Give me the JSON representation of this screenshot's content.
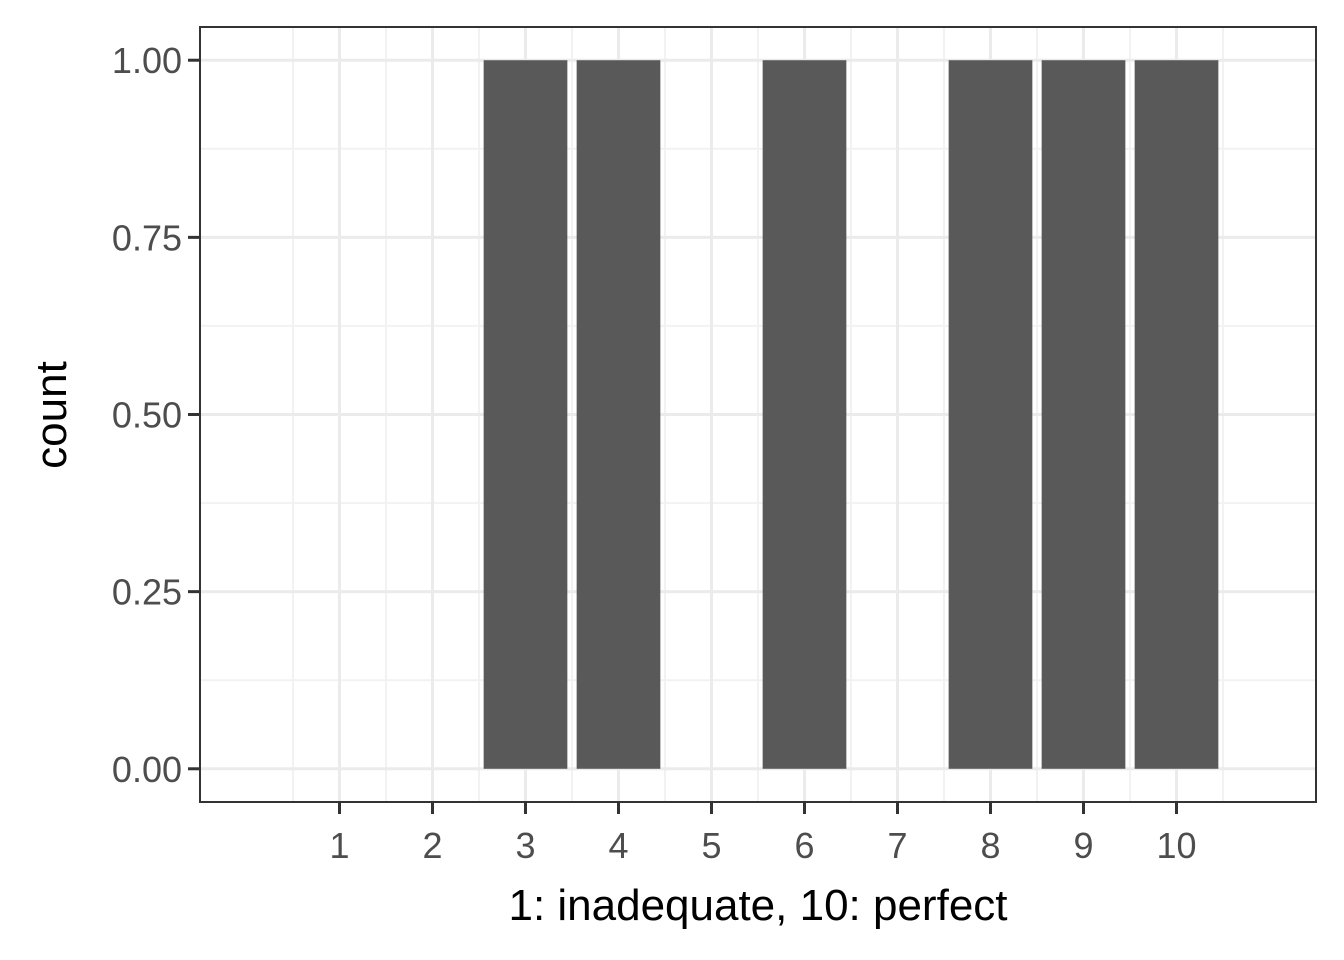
{
  "chart_data": {
    "type": "bar",
    "title": "",
    "xlabel": "1: inadequate, 10: perfect",
    "ylabel": "count",
    "categories": [
      "1",
      "2",
      "3",
      "4",
      "5",
      "6",
      "7",
      "8",
      "9",
      "10"
    ],
    "x": [
      3,
      4,
      6,
      8,
      9,
      10
    ],
    "values": [
      1,
      1,
      1,
      1,
      1,
      1
    ],
    "xlim": [
      -0.5,
      11.5
    ],
    "ylim": [
      -0.046875,
      1.046875
    ],
    "yticks": [
      "0.00",
      "0.25",
      "0.50",
      "0.75",
      "1.00"
    ],
    "ytick_values": [
      0,
      0.25,
      0.5,
      0.75,
      1
    ],
    "grid": true,
    "legend": "none",
    "colors": {
      "bar": "#595959",
      "panel_border": "#333333",
      "grid_major": "#ebebeb",
      "grid_minor": "#f2f2f2",
      "tick_text": "#4d4d4d"
    }
  }
}
